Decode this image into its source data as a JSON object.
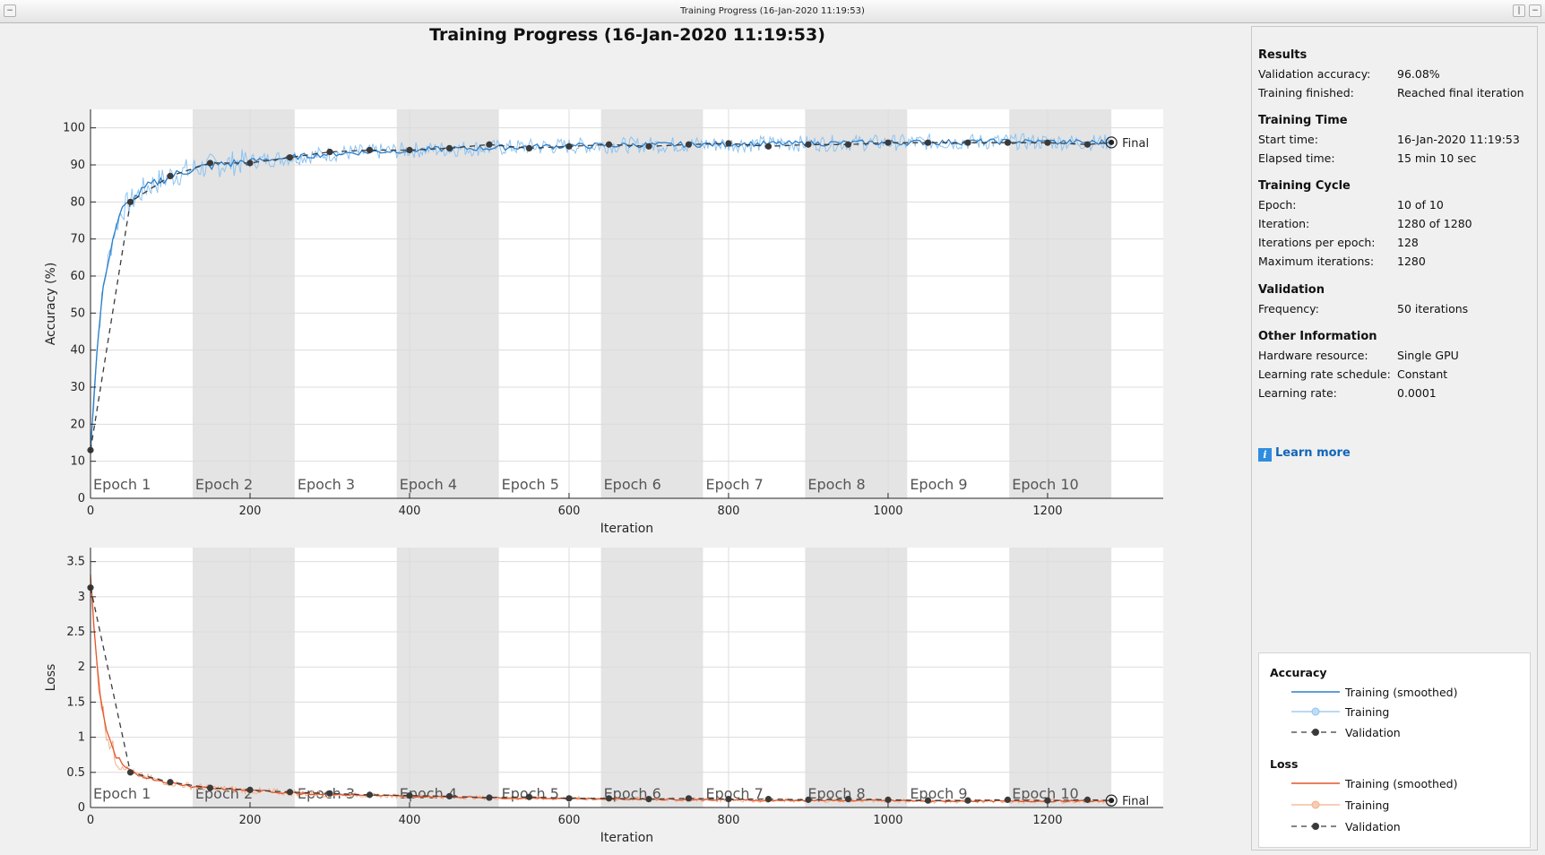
{
  "window": {
    "title": "Training Progress (16-Jan-2020 11:19:53)"
  },
  "main_title": "Training Progress (16-Jan-2020 11:19:53)",
  "colors": {
    "accuracy_training": "#2c7fc9",
    "accuracy_training_raw": "#8fc3ef",
    "loss_training": "#e2572c",
    "loss_training_raw": "#f2b08d",
    "validation": "#3a3a3a",
    "epoch_band": "#e4e4e4"
  },
  "epochs": [
    "Epoch 1",
    "Epoch 2",
    "Epoch 3",
    "Epoch 4",
    "Epoch 5",
    "Epoch 6",
    "Epoch 7",
    "Epoch 8",
    "Epoch 9",
    "Epoch 10"
  ],
  "final_label": "Final",
  "chart_data": [
    {
      "type": "line",
      "title": "",
      "xlabel": "Iteration",
      "ylabel": "Accuracy (%)",
      "xlim": [
        0,
        1345
      ],
      "ylim": [
        0,
        105
      ],
      "xticks": [
        0,
        200,
        400,
        600,
        800,
        1000,
        1200
      ],
      "yticks": [
        0,
        10,
        20,
        30,
        40,
        50,
        60,
        70,
        80,
        90,
        100
      ],
      "grid": true,
      "iterations_per_epoch": 128,
      "series": [
        {
          "name": "Training (smoothed)",
          "x": [
            0,
            5,
            10,
            15,
            20,
            30,
            40,
            50,
            60,
            70,
            80,
            100,
            130,
            160,
            200,
            250,
            300,
            350,
            400,
            450,
            500,
            550,
            600,
            650,
            700,
            750,
            800,
            850,
            900,
            950,
            1000,
            1050,
            1100,
            1150,
            1200,
            1250,
            1280
          ],
          "y": [
            13,
            30,
            45,
            55,
            62,
            72,
            78,
            80,
            82,
            84,
            85,
            87,
            89,
            90,
            91,
            92,
            93,
            93.5,
            94,
            94.3,
            94.6,
            94.9,
            95.1,
            95.3,
            95.4,
            95.5,
            95.6,
            95.7,
            95.8,
            95.9,
            96,
            96.1,
            96.2,
            96.3,
            96.2,
            96.1,
            96.1
          ]
        },
        {
          "name": "Validation",
          "x": [
            0,
            50,
            100,
            150,
            200,
            250,
            300,
            350,
            400,
            450,
            500,
            550,
            600,
            650,
            700,
            750,
            800,
            850,
            900,
            950,
            1000,
            1050,
            1100,
            1150,
            1200,
            1250,
            1280
          ],
          "y": [
            13,
            80,
            87,
            90.5,
            90.5,
            92,
            93.5,
            94,
            94,
            94.5,
            95.5,
            94.5,
            95,
            95.5,
            95,
            95.5,
            95.8,
            95,
            95.5,
            95.5,
            96,
            96,
            96,
            96,
            96,
            95.5,
            96.08
          ]
        }
      ]
    },
    {
      "type": "line",
      "title": "",
      "xlabel": "Iteration",
      "ylabel": "Loss",
      "xlim": [
        0,
        1345
      ],
      "ylim": [
        0,
        3.7
      ],
      "xticks": [
        0,
        200,
        400,
        600,
        800,
        1000,
        1200
      ],
      "yticks": [
        0,
        0.5,
        1,
        1.5,
        2,
        2.5,
        3,
        3.5
      ],
      "grid": true,
      "iterations_per_epoch": 128,
      "series": [
        {
          "name": "Training (smoothed)",
          "x": [
            0,
            3,
            6,
            10,
            15,
            20,
            25,
            30,
            40,
            50,
            60,
            80,
            100,
            130,
            160,
            200,
            250,
            300,
            350,
            400,
            450,
            500,
            550,
            600,
            650,
            700,
            750,
            800,
            850,
            900,
            950,
            1000,
            1050,
            1100,
            1150,
            1200,
            1250,
            1280
          ],
          "y": [
            3.3,
            2.8,
            2.3,
            1.8,
            1.4,
            1.1,
            0.9,
            0.75,
            0.6,
            0.52,
            0.46,
            0.4,
            0.35,
            0.3,
            0.27,
            0.24,
            0.21,
            0.19,
            0.17,
            0.16,
            0.15,
            0.14,
            0.13,
            0.13,
            0.12,
            0.12,
            0.11,
            0.11,
            0.1,
            0.1,
            0.1,
            0.1,
            0.09,
            0.09,
            0.09,
            0.09,
            0.09,
            0.09
          ]
        },
        {
          "name": "Validation",
          "x": [
            0,
            50,
            100,
            150,
            200,
            250,
            300,
            350,
            400,
            450,
            500,
            550,
            600,
            650,
            700,
            750,
            800,
            850,
            900,
            950,
            1000,
            1050,
            1100,
            1150,
            1200,
            1250,
            1280
          ],
          "y": [
            3.13,
            0.5,
            0.36,
            0.28,
            0.25,
            0.22,
            0.2,
            0.18,
            0.17,
            0.16,
            0.14,
            0.15,
            0.13,
            0.13,
            0.12,
            0.13,
            0.12,
            0.12,
            0.11,
            0.12,
            0.11,
            0.1,
            0.1,
            0.11,
            0.1,
            0.11,
            0.1
          ]
        }
      ]
    }
  ],
  "panel": {
    "results": {
      "heading": "Results",
      "rows": [
        {
          "label": "Validation accuracy:",
          "value": "96.08%"
        },
        {
          "label": "Training finished:",
          "value": "Reached final iteration"
        }
      ]
    },
    "training_time": {
      "heading": "Training Time",
      "rows": [
        {
          "label": "Start time:",
          "value": "16-Jan-2020 11:19:53"
        },
        {
          "label": "Elapsed time:",
          "value": "15 min 10 sec"
        }
      ]
    },
    "training_cycle": {
      "heading": "Training Cycle",
      "rows": [
        {
          "label": "Epoch:",
          "value": "10 of 10"
        },
        {
          "label": "Iteration:",
          "value": "1280 of 1280"
        },
        {
          "label": "Iterations per epoch:",
          "value": "128"
        },
        {
          "label": "Maximum iterations:",
          "value": "1280"
        }
      ]
    },
    "validation": {
      "heading": "Validation",
      "rows": [
        {
          "label": "Frequency:",
          "value": "50 iterations"
        }
      ]
    },
    "other": {
      "heading": "Other Information",
      "rows": [
        {
          "label": "Hardware resource:",
          "value": "Single GPU"
        },
        {
          "label": "Learning rate schedule:",
          "value": "Constant"
        },
        {
          "label": "Learning rate:",
          "value": "0.0001"
        }
      ]
    },
    "learn_more": "Learn more"
  },
  "legend": {
    "accuracy_heading": "Accuracy",
    "loss_heading": "Loss",
    "items": {
      "smoothed": "Training (smoothed)",
      "training": "Training",
      "validation": "Validation"
    }
  }
}
